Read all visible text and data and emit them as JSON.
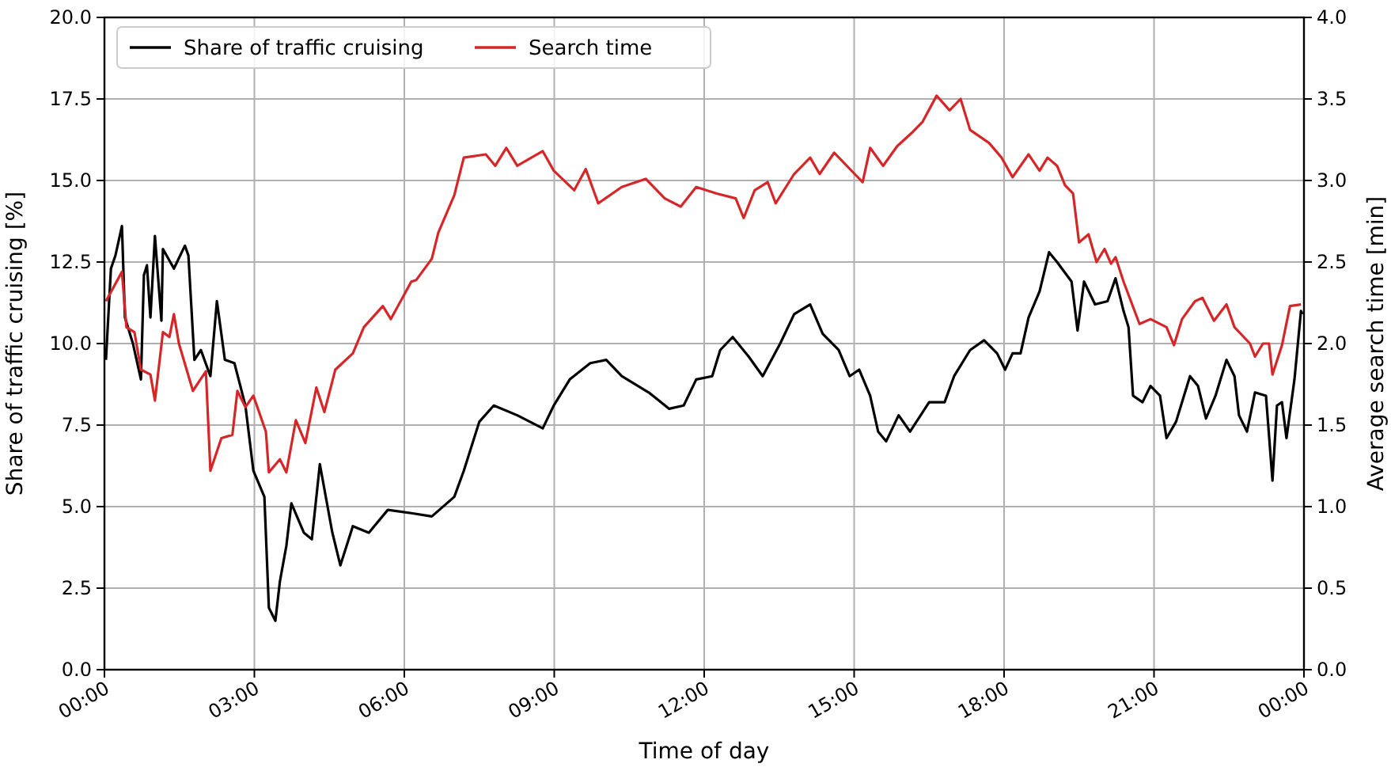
{
  "chart_data": {
    "type": "line",
    "xlabel": "Time of day",
    "ylabel": "Share of traffic cruising [%]",
    "y2label": "Average search time [min]",
    "xlim": [
      0,
      24
    ],
    "xticks": [
      {
        "value": 0,
        "label": "00:00"
      },
      {
        "value": 3,
        "label": "03:00"
      },
      {
        "value": 6,
        "label": "06:00"
      },
      {
        "value": 9,
        "label": "09:00"
      },
      {
        "value": 12,
        "label": "12:00"
      },
      {
        "value": 15,
        "label": "15:00"
      },
      {
        "value": 18,
        "label": "18:00"
      },
      {
        "value": 21,
        "label": "21:00"
      },
      {
        "value": 24,
        "label": "00:00"
      }
    ],
    "ylim": [
      0,
      20
    ],
    "yticks": [
      {
        "value": 0,
        "label": "0.0"
      },
      2.5,
      {
        "value": 5,
        "label": "5.0"
      },
      7.5,
      {
        "value": 10,
        "label": "10.0"
      },
      12.5,
      {
        "value": 15,
        "label": "15.0"
      },
      17.5,
      {
        "value": 20,
        "label": "20.0"
      }
    ],
    "y2lim": [
      0,
      4
    ],
    "y2ticks": [
      {
        "value": 0,
        "label": "0.0"
      },
      0.5,
      {
        "value": 1,
        "label": "1.0"
      },
      1.5,
      {
        "value": 2,
        "label": "2.0"
      },
      2.5,
      {
        "value": 3,
        "label": "3.0"
      },
      3.5,
      {
        "value": 4,
        "label": "4.0"
      }
    ],
    "grid": true,
    "legend": "top left",
    "line_style": "solid",
    "series": [
      {
        "name": "Share of traffic cruising",
        "color": "#000000",
        "x": [
          0.03,
          0.13,
          0.22,
          0.35,
          0.41,
          0.57,
          0.73,
          0.79,
          0.85,
          0.92,
          1.01,
          1.14,
          1.17,
          1.39,
          1.61,
          1.68,
          1.8,
          1.93,
          2.12,
          2.25,
          2.41,
          2.6,
          2.82,
          2.98,
          3.2,
          3.29,
          3.42,
          3.51,
          3.64,
          3.74,
          3.99,
          4.15,
          4.31,
          4.56,
          4.72,
          4.97,
          5.29,
          5.67,
          6.14,
          6.55,
          7.0,
          7.19,
          7.5,
          7.79,
          8.26,
          8.77,
          8.99,
          9.31,
          9.72,
          10.04,
          10.35,
          10.89,
          11.3,
          11.59,
          11.84,
          12.16,
          12.32,
          12.57,
          12.89,
          13.17,
          13.52,
          13.8,
          14.12,
          14.37,
          14.69,
          14.91,
          15.1,
          15.32,
          15.48,
          15.64,
          15.89,
          16.12,
          16.5,
          16.81,
          17.0,
          17.32,
          17.6,
          17.86,
          18.02,
          18.17,
          18.33,
          18.49,
          18.71,
          18.9,
          19.06,
          19.35,
          19.47,
          19.6,
          19.82,
          20.07,
          20.23,
          20.39,
          20.49,
          20.58,
          20.77,
          20.93,
          21.12,
          21.25,
          21.44,
          21.72,
          21.88,
          22.04,
          22.23,
          22.45,
          22.61,
          22.7,
          22.86,
          23.02,
          23.24,
          23.37,
          23.46,
          23.56,
          23.65,
          23.81,
          23.94,
          23.97
        ],
        "values": [
          9.5,
          12.3,
          12.7,
          13.6,
          10.8,
          10.0,
          8.9,
          12.1,
          12.4,
          10.8,
          13.3,
          10.7,
          12.9,
          12.3,
          13.0,
          12.7,
          9.5,
          9.8,
          9.0,
          11.3,
          9.5,
          9.4,
          8.1,
          6.1,
          5.3,
          1.9,
          1.5,
          2.7,
          3.8,
          5.1,
          4.2,
          4.0,
          6.3,
          4.2,
          3.2,
          4.4,
          4.2,
          4.9,
          4.8,
          4.7,
          5.3,
          6.1,
          7.6,
          8.1,
          7.8,
          7.4,
          8.1,
          8.9,
          9.4,
          9.5,
          9.0,
          8.5,
          8.0,
          8.1,
          8.9,
          9.0,
          9.8,
          10.2,
          9.6,
          9.0,
          10.0,
          10.9,
          11.2,
          10.3,
          9.8,
          9.0,
          9.2,
          8.4,
          7.3,
          7.0,
          7.8,
          7.3,
          8.2,
          8.2,
          9.0,
          9.8,
          10.1,
          9.7,
          9.2,
          9.7,
          9.7,
          10.8,
          11.6,
          12.8,
          12.5,
          11.9,
          10.4,
          11.9,
          11.2,
          11.3,
          12.0,
          11.0,
          10.5,
          8.4,
          8.2,
          8.7,
          8.4,
          7.1,
          7.6,
          9.0,
          8.7,
          7.7,
          8.4,
          9.5,
          9.0,
          7.8,
          7.3,
          8.5,
          8.4,
          5.8,
          8.1,
          8.2,
          7.1,
          8.9,
          11.0,
          10.9
        ]
      },
      {
        "name": "Search time",
        "color": "#d62728",
        "axis": "y2",
        "x": [
          0.03,
          0.35,
          0.44,
          0.6,
          0.73,
          0.92,
          1.01,
          1.17,
          1.3,
          1.39,
          1.49,
          1.77,
          2.03,
          2.12,
          2.34,
          2.56,
          2.66,
          2.82,
          2.98,
          3.23,
          3.29,
          3.51,
          3.64,
          3.83,
          4.02,
          4.24,
          4.4,
          4.62,
          4.97,
          5.19,
          5.57,
          5.73,
          6.14,
          6.24,
          6.55,
          6.68,
          7.0,
          7.19,
          7.63,
          7.82,
          8.04,
          8.26,
          8.77,
          8.99,
          9.4,
          9.63,
          9.88,
          10.35,
          10.83,
          11.21,
          11.53,
          11.84,
          12.25,
          12.63,
          12.79,
          13.01,
          13.27,
          13.43,
          13.8,
          14.12,
          14.31,
          14.6,
          15.01,
          15.17,
          15.32,
          15.58,
          15.86,
          16.18,
          16.37,
          16.65,
          16.91,
          17.13,
          17.32,
          17.7,
          17.95,
          18.17,
          18.49,
          18.71,
          18.87,
          19.06,
          19.22,
          19.38,
          19.5,
          19.69,
          19.85,
          20.01,
          20.14,
          20.23,
          20.39,
          20.71,
          20.93,
          21.25,
          21.4,
          21.56,
          21.82,
          21.97,
          22.2,
          22.45,
          22.61,
          22.92,
          23.02,
          23.18,
          23.3,
          23.37,
          23.56,
          23.72,
          23.94
        ],
        "values": [
          2.26,
          2.44,
          2.1,
          2.07,
          1.84,
          1.81,
          1.65,
          2.07,
          2.04,
          2.18,
          2.0,
          1.71,
          1.83,
          1.22,
          1.42,
          1.44,
          1.71,
          1.61,
          1.68,
          1.46,
          1.21,
          1.29,
          1.21,
          1.53,
          1.39,
          1.73,
          1.58,
          1.84,
          1.94,
          2.1,
          2.23,
          2.15,
          2.38,
          2.39,
          2.52,
          2.68,
          2.91,
          3.14,
          3.16,
          3.09,
          3.2,
          3.09,
          3.18,
          3.06,
          2.94,
          3.07,
          2.86,
          2.96,
          3.01,
          2.89,
          2.84,
          2.96,
          2.92,
          2.89,
          2.77,
          2.94,
          2.99,
          2.86,
          3.04,
          3.14,
          3.04,
          3.17,
          3.04,
          2.99,
          3.2,
          3.09,
          3.21,
          3.3,
          3.36,
          3.52,
          3.43,
          3.5,
          3.31,
          3.23,
          3.14,
          3.02,
          3.16,
          3.06,
          3.14,
          3.09,
          2.97,
          2.92,
          2.62,
          2.67,
          2.5,
          2.58,
          2.49,
          2.53,
          2.38,
          2.12,
          2.15,
          2.1,
          1.99,
          2.15,
          2.26,
          2.28,
          2.14,
          2.24,
          2.1,
          2.0,
          1.92,
          2.0,
          2.0,
          1.81,
          1.99,
          2.23,
          2.24
        ]
      }
    ]
  }
}
